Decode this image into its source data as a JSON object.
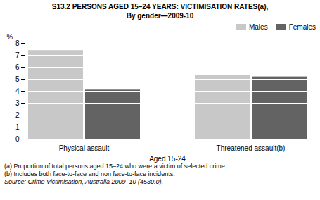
{
  "chart_data": {
    "type": "bar",
    "title": "S13.2   PERSONS AGED 15–24 YEARS: VICTIMISATION RATES(a),",
    "subtitle": "By gender—2009-10",
    "categories": [
      "Physical assault",
      "Threatened assault(b)"
    ],
    "series": [
      {
        "name": "Males",
        "color": "#c8c8c8",
        "values": [
          7.4,
          5.3
        ]
      },
      {
        "name": "Females",
        "color": "#636363",
        "values": [
          4.1,
          5.2
        ]
      }
    ],
    "xlabel": "Aged 15-24",
    "ylabel": "%",
    "ylim": [
      0,
      8
    ],
    "yticks": [
      0,
      1,
      2,
      3,
      4,
      5,
      6,
      7,
      8
    ],
    "grid": true,
    "legend": "upper right",
    "annotations": [
      "(a) Proportion of total persons aged 15–24 who were a victim of selected crime.",
      "(b) Includes both face-to-face and non face-to-face incidents.",
      "Source: Crime Victimisation, Australia 2009–10 (4530.0)."
    ]
  }
}
